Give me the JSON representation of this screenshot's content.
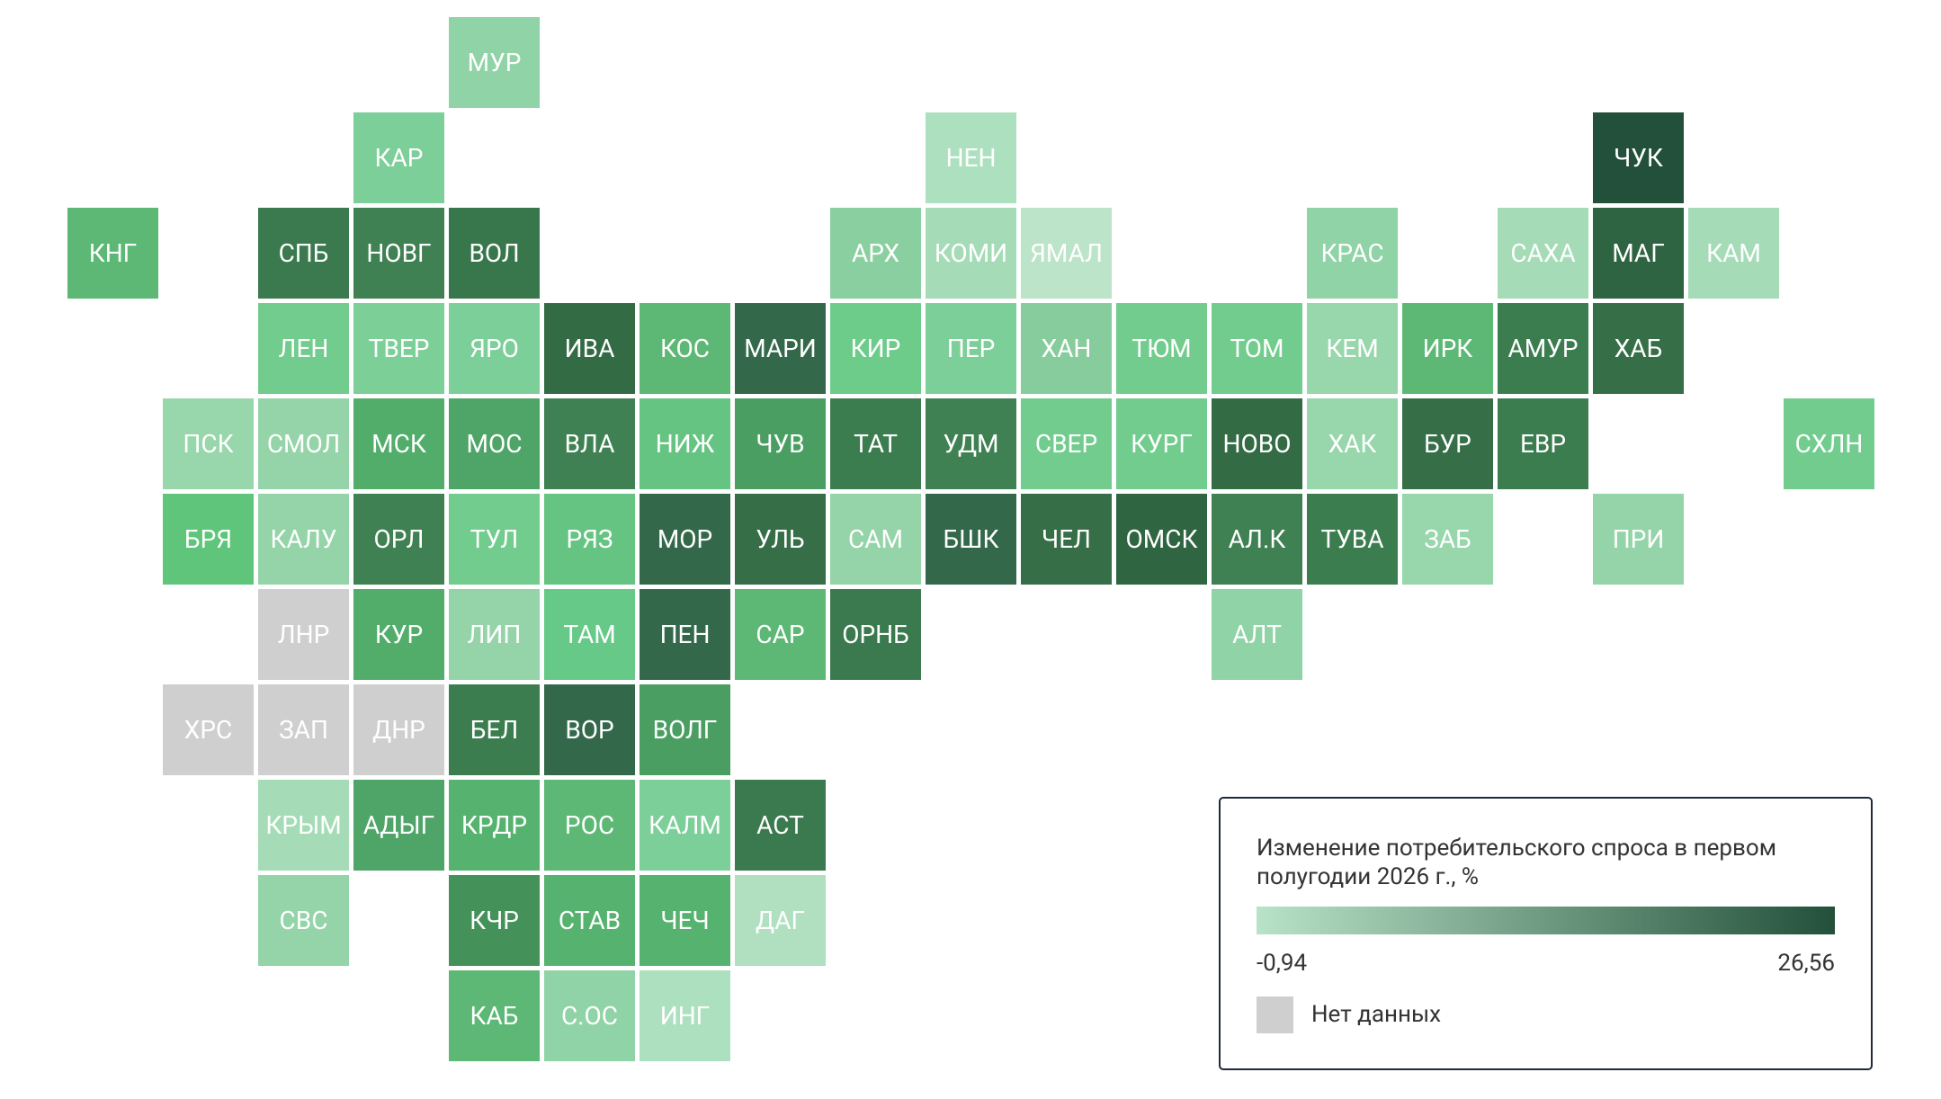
{
  "tiles": [
    {
      "label": "МУР",
      "color": "#8fd3a6"
    },
    {
      "label": "КАР",
      "color": "#7ccf98"
    },
    {
      "label": "НЕН",
      "color": "#ade0bf"
    },
    {
      "label": "ЧУК",
      "color": "#23503a"
    },
    {
      "label": "КНГ",
      "color": "#5cb874"
    },
    {
      "label": "СПБ",
      "color": "#3a7a4e"
    },
    {
      "label": "НОВГ",
      "color": "#3f8153"
    },
    {
      "label": "ВОЛ",
      "color": "#38774c"
    },
    {
      "label": "АРХ",
      "color": "#8acf9f"
    },
    {
      "label": "КОМИ",
      "color": "#a5dcb7"
    },
    {
      "label": "ЯМАЛ",
      "color": "#bce4c9"
    },
    {
      "label": "КРАС",
      "color": "#8fd3a6"
    },
    {
      "label": "САХА",
      "color": "#a5dcb7"
    },
    {
      "label": "МАГ",
      "color": "#2e6442"
    },
    {
      "label": "КАМ",
      "color": "#a5dcb7"
    },
    {
      "label": "ЛЕН",
      "color": "#71cc8d"
    },
    {
      "label": "ТВЕР",
      "color": "#7dcf98"
    },
    {
      "label": "ЯРО",
      "color": "#7ccf98"
    },
    {
      "label": "ИВА",
      "color": "#336b45"
    },
    {
      "label": "КОС",
      "color": "#5cb874"
    },
    {
      "label": "МАРИ",
      "color": "#33694a"
    },
    {
      "label": "КИР",
      "color": "#6dcc8a"
    },
    {
      "label": "ПЕР",
      "color": "#7ccf98"
    },
    {
      "label": "ХАН",
      "color": "#87cc9c"
    },
    {
      "label": "ТЮМ",
      "color": "#71cc8d"
    },
    {
      "label": "ТОМ",
      "color": "#71cc8d"
    },
    {
      "label": "КЕМ",
      "color": "#98d6ab"
    },
    {
      "label": "ИРК",
      "color": "#5cb874"
    },
    {
      "label": "АМУР",
      "color": "#3c7d50"
    },
    {
      "label": "ХАБ",
      "color": "#356e47"
    },
    {
      "label": "ПСК",
      "color": "#98d6ab"
    },
    {
      "label": "СМОЛ",
      "color": "#94d4a8"
    },
    {
      "label": "МСК",
      "color": "#52ad6b"
    },
    {
      "label": "МОС",
      "color": "#4fa568"
    },
    {
      "label": "ВЛА",
      "color": "#3f8153"
    },
    {
      "label": "НИЖ",
      "color": "#66c482"
    },
    {
      "label": "ЧУВ",
      "color": "#4a9e62"
    },
    {
      "label": "ТАТ",
      "color": "#3c7d50"
    },
    {
      "label": "УДМ",
      "color": "#3f8153"
    },
    {
      "label": "СВЕР",
      "color": "#71cc8d"
    },
    {
      "label": "КУРГ",
      "color": "#71cc8d"
    },
    {
      "label": "НОВО",
      "color": "#336b45"
    },
    {
      "label": "ХАК",
      "color": "#98d6ab"
    },
    {
      "label": "БУР",
      "color": "#356e47"
    },
    {
      "label": "ЕВР",
      "color": "#3c7d50"
    },
    {
      "label": "СХЛН",
      "color": "#71cc8d"
    },
    {
      "label": "БРЯ",
      "color": "#5ec57a"
    },
    {
      "label": "КАЛУ",
      "color": "#94d4a8"
    },
    {
      "label": "ОРЛ",
      "color": "#3f8153"
    },
    {
      "label": "ТУЛ",
      "color": "#71cc8d"
    },
    {
      "label": "РЯЗ",
      "color": "#66c482"
    },
    {
      "label": "МОР",
      "color": "#33694a"
    },
    {
      "label": "УЛЬ",
      "color": "#356e47"
    },
    {
      "label": "САМ",
      "color": "#94d4a8"
    },
    {
      "label": "БШК",
      "color": "#33694a"
    },
    {
      "label": "ЧЕЛ",
      "color": "#356e47"
    },
    {
      "label": "ОМСК",
      "color": "#2f6541"
    },
    {
      "label": "АЛ.К",
      "color": "#3f8153"
    },
    {
      "label": "ТУВА",
      "color": "#3c7d50"
    },
    {
      "label": "ЗАБ",
      "color": "#98d6ab"
    },
    {
      "label": "ПРИ",
      "color": "#94d4a8"
    },
    {
      "label": "ЛНР",
      "color": "#cfcfcf"
    },
    {
      "label": "КУР",
      "color": "#52ad6b"
    },
    {
      "label": "ЛИП",
      "color": "#94d4a8"
    },
    {
      "label": "ТАМ",
      "color": "#66c988"
    },
    {
      "label": "ПЕН",
      "color": "#33694a"
    },
    {
      "label": "САР",
      "color": "#5cb874"
    },
    {
      "label": "ОРНБ",
      "color": "#3a7a4e"
    },
    {
      "label": "АЛТ",
      "color": "#8fd3a6"
    },
    {
      "label": "ХРС",
      "color": "#cfcfcf"
    },
    {
      "label": "ЗАП",
      "color": "#cfcfcf"
    },
    {
      "label": "ДНР",
      "color": "#cfcfcf"
    },
    {
      "label": "БЕЛ",
      "color": "#3c7d50"
    },
    {
      "label": "ВОР",
      "color": "#33694a"
    },
    {
      "label": "ВОЛГ",
      "color": "#4a9e62"
    },
    {
      "label": "КРЫМ",
      "color": "#a5dcb7"
    },
    {
      "label": "АДЫГ",
      "color": "#4fa568"
    },
    {
      "label": "КРДР",
      "color": "#56b26f"
    },
    {
      "label": "РОС",
      "color": "#5cb874"
    },
    {
      "label": "КАЛМ",
      "color": "#7ccf98"
    },
    {
      "label": "АСТ",
      "color": "#3a7a4e"
    },
    {
      "label": "СВС",
      "color": "#94d4a8"
    },
    {
      "label": "КЧР",
      "color": "#44915a"
    },
    {
      "label": "СТАВ",
      "color": "#56b26f"
    },
    {
      "label": "ЧЕЧ",
      "color": "#56b26f"
    },
    {
      "label": "ДАГ",
      "color": "#b0e0c0"
    },
    {
      "label": "КАБ",
      "color": "#5cb874"
    },
    {
      "label": "С.ОС",
      "color": "#8fd3a6"
    },
    {
      "label": "ИНГ",
      "color": "#ade0bf"
    }
  ],
  "legend": {
    "title": [
      "Изменение потребительского спроса в первом",
      "полугодии 2026 г., %"
    ],
    "min": {
      "value": -0.94,
      "label": "-0,94"
    },
    "max": {
      "value": 26.56,
      "label": "26,56"
    },
    "colors": [
      "#b9e3c8",
      "#23503a"
    ],
    "no_data": {
      "label": "Нет данных",
      "color": "#cfcfcf"
    }
  }
}
